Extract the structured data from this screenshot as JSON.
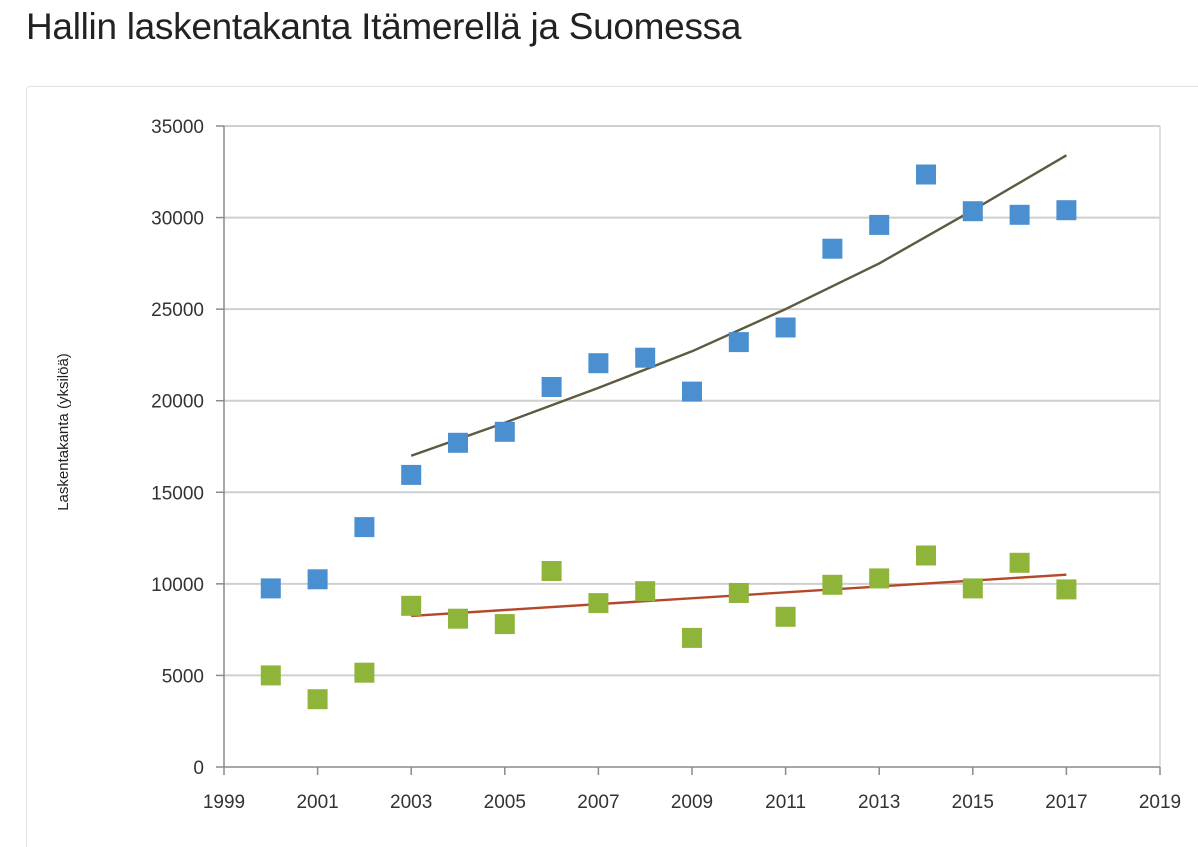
{
  "title": "Hallin laskentakanta Itämerellä ja Suomessa",
  "chart_data": {
    "type": "scatter",
    "title": "",
    "xlabel": "",
    "ylabel": "Laskentakanta (yksilöä)",
    "xlim": [
      1999,
      2019
    ],
    "ylim": [
      0,
      35000
    ],
    "x_ticks": [
      "1999",
      "2001",
      "2003",
      "2005",
      "2007",
      "2009",
      "2011",
      "2013",
      "2015",
      "2017",
      "2019"
    ],
    "y_ticks": [
      "0",
      "5000",
      "10000",
      "15000",
      "20000",
      "25000",
      "30000",
      "35000"
    ],
    "grid": true,
    "legend": "none",
    "series": [
      {
        "color": "#4a90d0",
        "marker": "square",
        "x": [
          2000,
          2001,
          2002,
          2003,
          2004,
          2005,
          2006,
          2007,
          2008,
          2009,
          2010,
          2011,
          2012,
          2013,
          2014,
          2015,
          2016,
          2017
        ],
        "values": [
          9750,
          10250,
          13100,
          15950,
          17700,
          18300,
          20750,
          22050,
          22350,
          20500,
          23200,
          24000,
          28300,
          29600,
          32350,
          30350,
          30150,
          30400
        ],
        "trendline": {
          "color": "#5c5a40",
          "x": [
            2003,
            2005,
            2007,
            2009,
            2011,
            2013,
            2015,
            2017
          ],
          "values": [
            17000,
            18800,
            20700,
            22700,
            25000,
            27500,
            30400,
            33400
          ]
        }
      },
      {
        "color": "#8fb43a",
        "marker": "square",
        "x": [
          2000,
          2001,
          2002,
          2003,
          2004,
          2005,
          2006,
          2007,
          2008,
          2009,
          2010,
          2011,
          2012,
          2013,
          2014,
          2015,
          2016,
          2017
        ],
        "values": [
          5000,
          3700,
          5150,
          8800,
          8100,
          7800,
          10700,
          8950,
          9600,
          7050,
          9500,
          8200,
          9950,
          10300,
          11550,
          9750,
          11150,
          9700
        ],
        "trendline": {
          "color": "#b5472a",
          "x": [
            2003,
            2017
          ],
          "values": [
            8250,
            10500
          ]
        }
      }
    ]
  }
}
